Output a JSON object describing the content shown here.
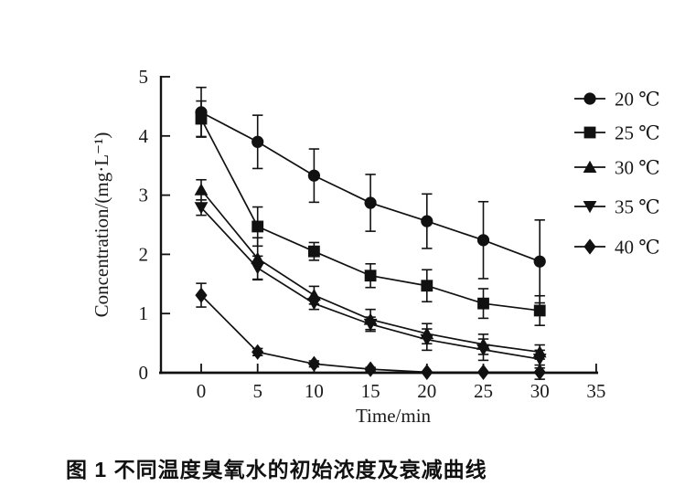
{
  "figure_caption": "图 1  不同温度臭氧水的初始浓度及衰减曲线",
  "chart_data": {
    "type": "line",
    "title": "",
    "xlabel": "Time/min",
    "ylabel": "Concentration/(mg·L⁻¹)",
    "xlim": [
      0,
      35
    ],
    "ylim": [
      0,
      5
    ],
    "x_ticks": [
      0,
      5,
      10,
      15,
      20,
      25,
      30,
      35
    ],
    "y_ticks": [
      0,
      1,
      2,
      3,
      4,
      5
    ],
    "grid": false,
    "legend_position": "right-outside",
    "error_bars": true,
    "x": [
      0,
      5,
      10,
      15,
      20,
      25,
      30
    ],
    "series": [
      {
        "name": "20 ℃",
        "marker": "circle",
        "values": [
          4.4,
          3.9,
          3.33,
          2.87,
          2.56,
          2.24,
          1.88
        ],
        "errors": [
          0.42,
          0.45,
          0.45,
          0.48,
          0.46,
          0.65,
          0.7
        ]
      },
      {
        "name": "25 ℃",
        "marker": "square",
        "values": [
          4.29,
          2.47,
          2.05,
          1.64,
          1.47,
          1.17,
          1.05
        ],
        "errors": [
          0.3,
          0.33,
          0.15,
          0.2,
          0.27,
          0.25,
          0.25
        ]
      },
      {
        "name": "30 ℃",
        "marker": "triangle-up",
        "values": [
          3.09,
          1.93,
          1.31,
          0.9,
          0.66,
          0.48,
          0.35
        ],
        "errors": [
          0.17,
          0.35,
          0.15,
          0.17,
          0.17,
          0.17,
          0.12
        ]
      },
      {
        "name": "35 ℃",
        "marker": "triangle-down",
        "values": [
          2.79,
          1.77,
          1.17,
          0.82,
          0.56,
          0.39,
          0.23
        ],
        "errors": [
          0.13,
          0.2,
          0.1,
          0.12,
          0.18,
          0.18,
          0.15
        ]
      },
      {
        "name": "40 ℃",
        "marker": "diamond",
        "values": [
          1.31,
          0.35,
          0.15,
          0.06,
          0.01,
          0.01,
          0.01
        ],
        "errors": [
          0.2,
          0.06,
          0.05,
          0.03,
          0.02,
          0.02,
          0.12
        ]
      }
    ],
    "colors": {
      "ink": "#111111",
      "text": "#1a1a1a"
    }
  }
}
